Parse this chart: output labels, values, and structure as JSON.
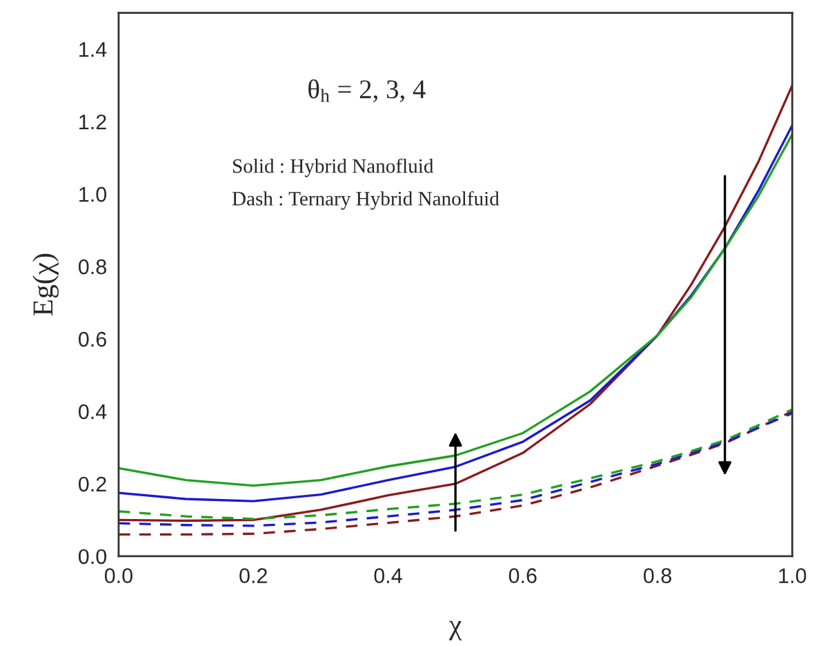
{
  "chart_data": {
    "type": "line",
    "xlabel": "χ",
    "ylabel": "Eg(χ)",
    "annotations": [
      "θ$_{h}$ = 2, 3, 4",
      "Solid : Hybrid Nanofluid",
      "Dash : Ternary Hybrid Nanolfuid"
    ],
    "x": [
      0.0,
      0.1,
      0.2,
      0.3,
      0.4,
      0.5,
      0.6,
      0.7,
      0.8,
      0.85,
      0.9,
      0.95,
      1.0
    ],
    "series": [
      {
        "color": "#8b1a1a",
        "line_style": "solid",
        "values": [
          0.1,
          0.098,
          0.1,
          0.128,
          0.168,
          0.2,
          0.285,
          0.42,
          0.61,
          0.75,
          0.91,
          1.09,
          1.3
        ]
      },
      {
        "color": "#1a1ad0",
        "line_style": "solid",
        "values": [
          0.175,
          0.158,
          0.152,
          0.17,
          0.21,
          0.247,
          0.316,
          0.43,
          0.61,
          0.72,
          0.85,
          1.01,
          1.19
        ]
      },
      {
        "color": "#22a022",
        "line_style": "solid",
        "values": [
          0.243,
          0.21,
          0.195,
          0.21,
          0.248,
          0.278,
          0.34,
          0.455,
          0.61,
          0.715,
          0.85,
          0.995,
          1.165
        ]
      },
      {
        "color": "#8b1a1a",
        "line_style": "dashed",
        "values": [
          0.06,
          0.06,
          0.062,
          0.075,
          0.092,
          0.11,
          0.14,
          0.19,
          0.25,
          0.28,
          0.312,
          0.355,
          0.4
        ]
      },
      {
        "color": "#1a1ad0",
        "line_style": "dashed",
        "values": [
          0.091,
          0.086,
          0.084,
          0.093,
          0.11,
          0.128,
          0.155,
          0.205,
          0.255,
          0.285,
          0.315,
          0.355,
          0.395
        ]
      },
      {
        "color": "#22a022",
        "line_style": "dashed",
        "values": [
          0.124,
          0.11,
          0.103,
          0.113,
          0.13,
          0.145,
          0.17,
          0.215,
          0.262,
          0.29,
          0.32,
          0.362,
          0.405
        ]
      }
    ],
    "xlim": [
      0.0,
      1.0
    ],
    "ylim": [
      0.0,
      1.5
    ],
    "xticks": [
      {
        "value": 0,
        "label": "0.0"
      },
      0.2,
      0.4,
      0.6,
      0.8,
      {
        "value": 1,
        "label": "1.0"
      }
    ],
    "yticks": [
      {
        "value": 0,
        "label": "0.0"
      },
      0.2,
      0.4,
      0.6,
      0.8,
      {
        "value": 1,
        "label": "1.0"
      },
      1.2,
      1.4
    ],
    "grid": false,
    "legend": false
  }
}
